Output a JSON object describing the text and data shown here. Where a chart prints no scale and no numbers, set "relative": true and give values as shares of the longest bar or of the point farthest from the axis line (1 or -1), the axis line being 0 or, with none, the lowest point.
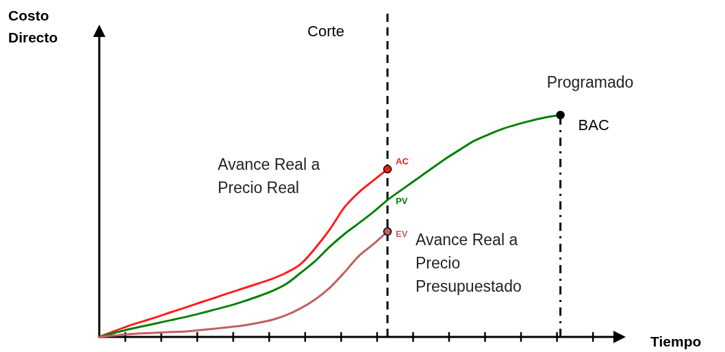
{
  "chart_data": {
    "type": "line",
    "relative": true,
    "line_style": "solid",
    "grid": false,
    "categories": [
      null,
      null,
      null,
      null,
      null,
      null,
      null,
      null,
      null,
      null,
      null,
      null,
      null,
      null,
      null,
      null,
      null,
      null,
      null,
      null,
      null,
      null,
      null,
      null,
      null,
      null,
      null,
      null,
      null,
      null,
      null,
      null,
      null
    ],
    "series": [
      {
        "name": "Avance Real a Precio Real",
        "color": "#ff1a1a",
        "values": [
          0,
          0.025,
          0.049,
          0.07,
          0.09,
          0.112,
          0.133,
          0.155,
          0.176,
          0.198,
          0.219,
          0.24,
          0.262,
          0.29,
          0.33,
          0.401,
          0.485,
          0.583,
          0.651,
          0.704,
          0.756,
          null,
          null,
          null,
          null,
          null,
          null,
          null,
          null,
          null,
          null,
          null,
          null
        ]
      },
      {
        "name": "Programado",
        "color": "#008000",
        "values": [
          0,
          0.017,
          0.034,
          0.048,
          0.062,
          0.076,
          0.09,
          0.106,
          0.123,
          0.14,
          0.16,
          0.182,
          0.207,
          0.24,
          0.29,
          0.343,
          0.407,
          0.463,
          0.512,
          0.562,
          0.617,
          0.664,
          0.71,
          0.756,
          0.802,
          0.843,
          0.883,
          0.912,
          0.938,
          0.958,
          0.975,
          0.99,
          1
        ]
      },
      {
        "name": "Avance Real a Precio Presupuestado",
        "color": "#c06060",
        "values": [
          0,
          0.006,
          0.012,
          0.016,
          0.019,
          0.022,
          0.025,
          0.031,
          0.037,
          0.044,
          0.052,
          0.063,
          0.077,
          0.099,
          0.13,
          0.17,
          0.222,
          0.29,
          0.364,
          0.417,
          0.475,
          null,
          null,
          null,
          null,
          null,
          null,
          null,
          null,
          null,
          null,
          null,
          null
        ]
      }
    ],
    "annotations": [
      "Costo Directo",
      "Corte",
      "AC",
      "PV",
      "EV",
      "BAC",
      "Tiempo"
    ]
  }
}
